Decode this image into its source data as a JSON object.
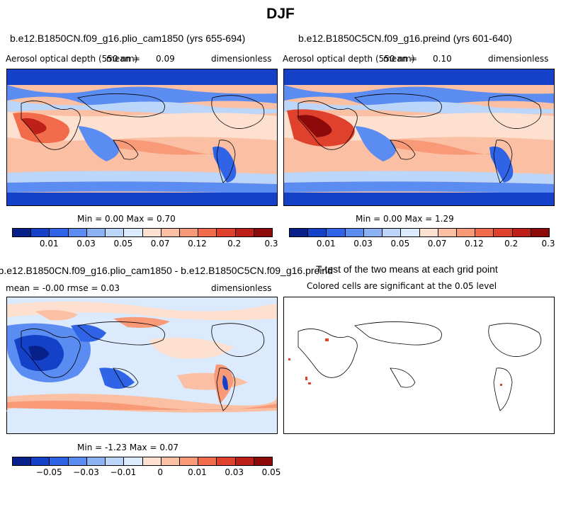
{
  "season": "DJF",
  "panels": {
    "top_left": {
      "run_title": "b.e12.B1850CN.f09_g16.plio_cam1850 (yrs 655-694)",
      "variable": "Aerosol optical depth (550 nm)",
      "mean_label": "mean =",
      "mean_value": "0.09",
      "units": "dimensionless",
      "min_max": "Min =   0.00 Max =   0.70"
    },
    "top_right": {
      "run_title": "b.e12.B1850C5CN.f09_g16.preind (yrs 601-640)",
      "variable": "Aerosol optical depth (550 nm)",
      "mean_label": "mean =",
      "mean_value": "0.10",
      "units": "dimensionless",
      "min_max": "Min =   0.00 Max =   1.29"
    },
    "bottom_left": {
      "run_title": "b.e12.B1850CN.f09_g16.plio_cam1850 - b.e12.B1850C5CN.f09_g16.preind",
      "stats": "mean =  -0.00    rmse =   0.03",
      "units": "dimensionless",
      "min_max": "Min =  -1.23 Max =   0.07"
    },
    "bottom_right": {
      "title": "T-test of the two means at each grid point",
      "subtitle": "Colored cells are significant at the 0.05 level"
    }
  },
  "colorbars": {
    "aod": {
      "labels": [
        "0.01",
        "0.03",
        "0.05",
        "0.07",
        "0.12",
        "0.2",
        "0.3"
      ],
      "colors": [
        "#08208a",
        "#1541c8",
        "#2f64e6",
        "#5b8cf2",
        "#8cb2f6",
        "#bcd6fa",
        "#dbeafc",
        "#fde0d0",
        "#fbc0a4",
        "#f89a78",
        "#f26b4b",
        "#e0412c",
        "#bd2018",
        "#8c0a0a"
      ]
    },
    "diff": {
      "labels": [
        "−0.05",
        "−0.03",
        "−0.01",
        "0",
        "0.01",
        "0.03",
        "0.05"
      ],
      "colors": [
        "#08208a",
        "#1541c8",
        "#2f64e6",
        "#5b8cf2",
        "#8cb2f6",
        "#bcd6fa",
        "#dbeafc",
        "#fde0d0",
        "#fbc0a4",
        "#f89a78",
        "#f26b4b",
        "#e0412c",
        "#bd2018",
        "#8c0a0a"
      ]
    }
  }
}
